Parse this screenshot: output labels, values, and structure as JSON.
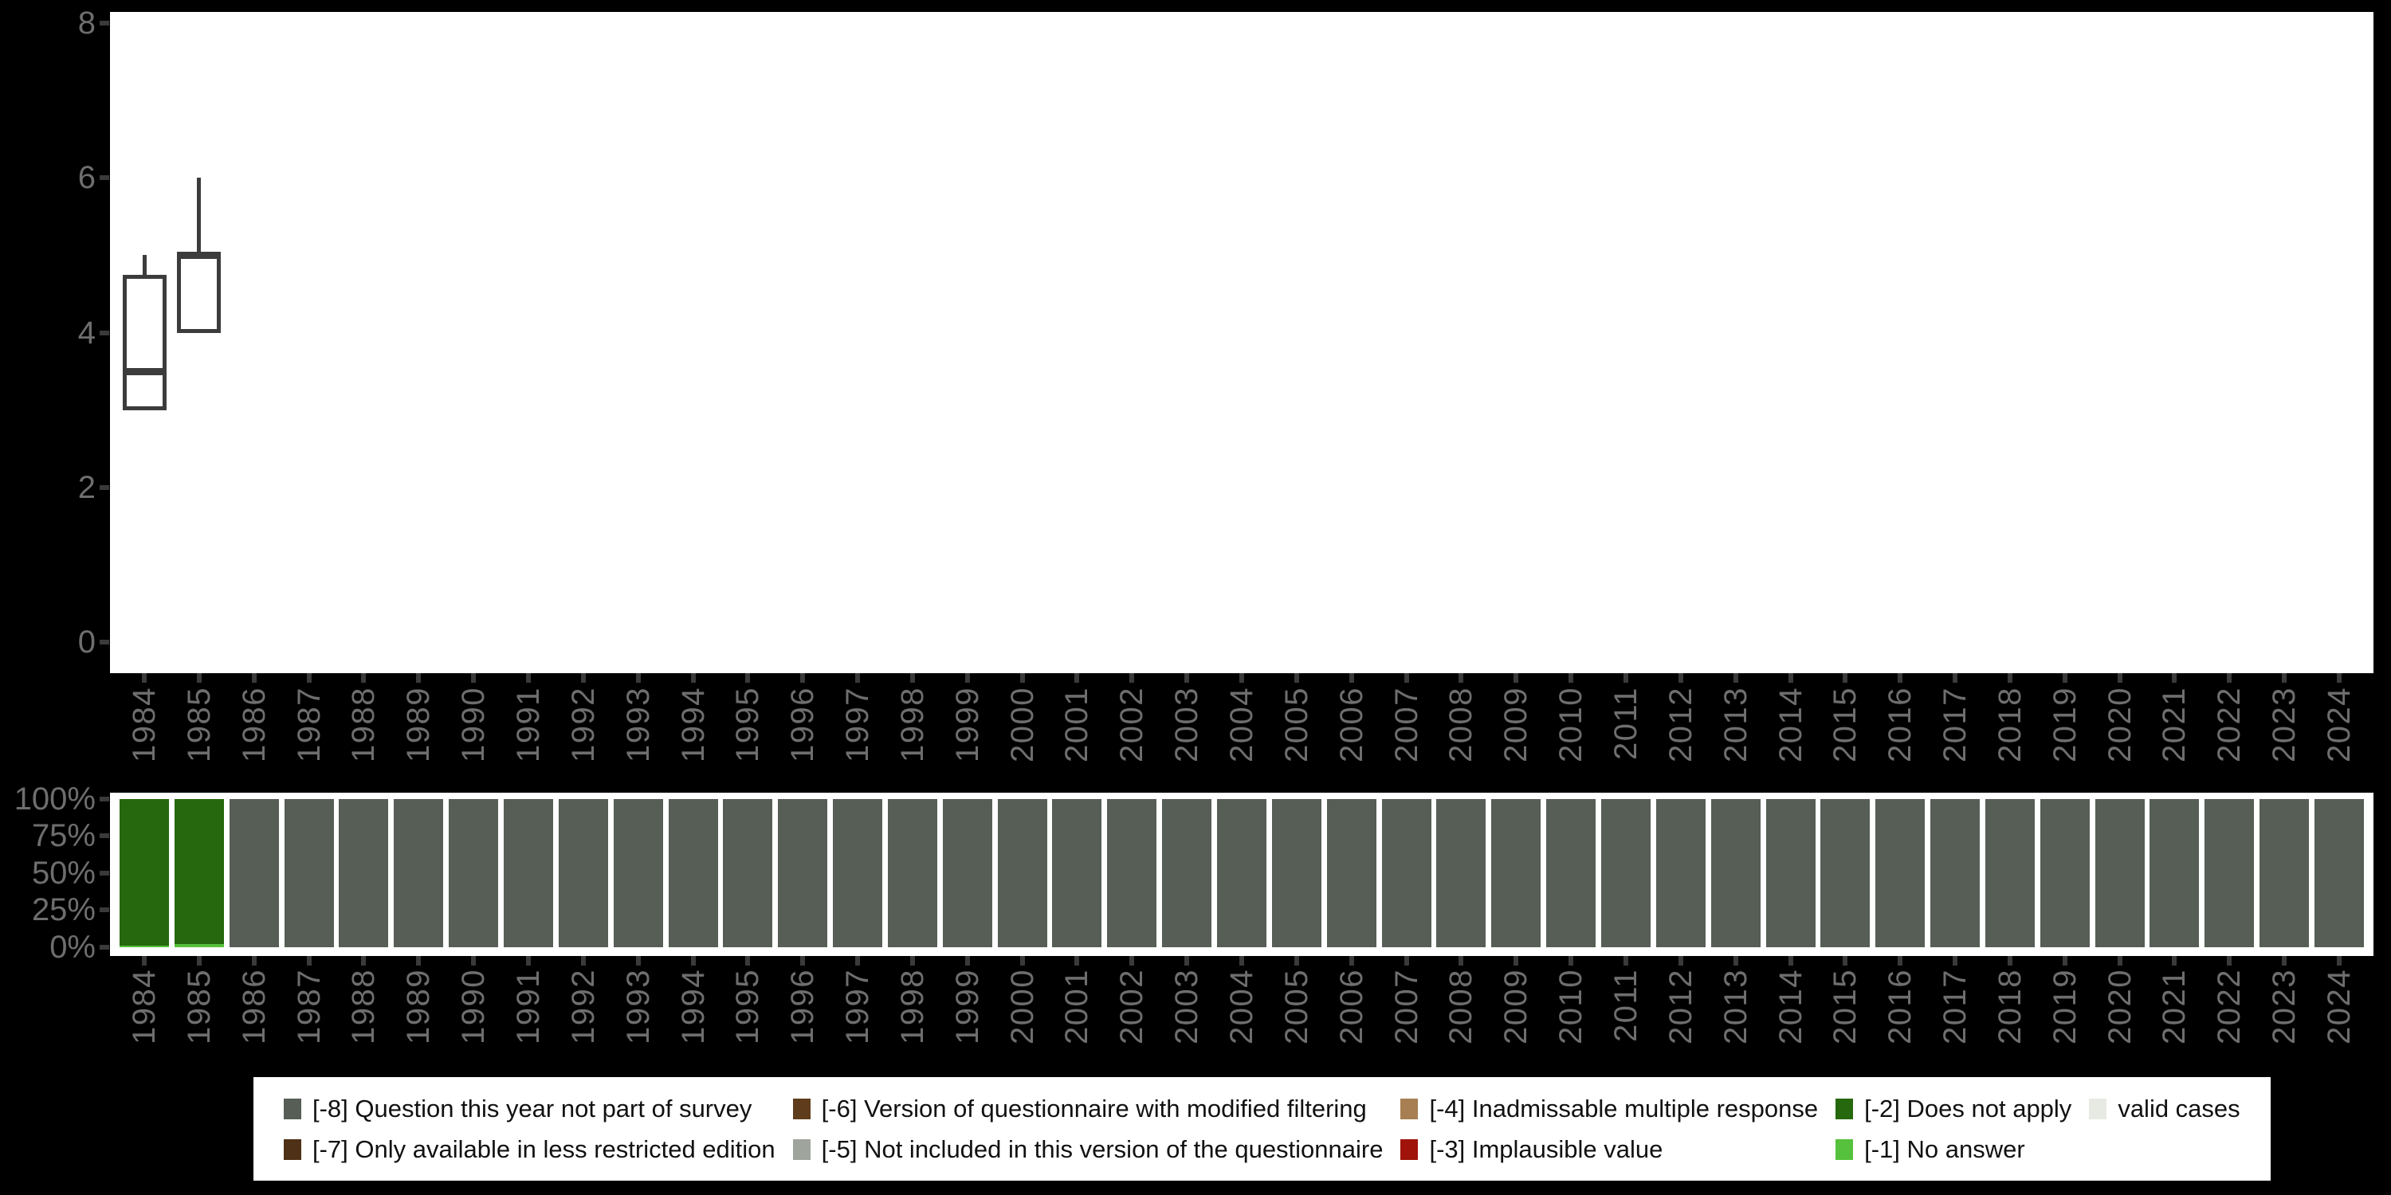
{
  "colors": {
    "page_background": "#000000",
    "plot_background": "#ffffff",
    "axis_text": "#6e6e6e",
    "tick_mark": "#3a3a3a",
    "boxplot_stroke": "#3c3c3c"
  },
  "chart_data": [
    {
      "type": "boxplot",
      "title": "",
      "xlabel": "",
      "ylabel": "",
      "ylim": [
        0,
        8
      ],
      "yticks": [
        0,
        2,
        4,
        6,
        8
      ],
      "grid": false,
      "x_categories": [
        "1984",
        "1985",
        "1986",
        "1987",
        "1988",
        "1989",
        "1990",
        "1991",
        "1992",
        "1993",
        "1994",
        "1995",
        "1996",
        "1997",
        "1998",
        "1999",
        "2000",
        "2001",
        "2002",
        "2003",
        "2004",
        "2005",
        "2006",
        "2007",
        "2008",
        "2009",
        "2010",
        "2011",
        "2012",
        "2013",
        "2014",
        "2015",
        "2016",
        "2017",
        "2018",
        "2019",
        "2020",
        "2021",
        "2022",
        "2023",
        "2024"
      ],
      "boxes": [
        {
          "x": "1984",
          "whisker_low": 3.0,
          "q1": 3.0,
          "median": 3.5,
          "q3": 4.75,
          "whisker_high": 5.0
        },
        {
          "x": "1985",
          "whisker_low": 4.0,
          "q1": 4.0,
          "median": 5.0,
          "q3": 5.0,
          "whisker_high": 6.0
        }
      ]
    },
    {
      "type": "bar",
      "stacked": true,
      "title": "",
      "xlabel": "",
      "ylabel": "",
      "ylim": [
        0,
        100
      ],
      "ytick_labels": [
        "0%",
        "25%",
        "50%",
        "75%",
        "100%"
      ],
      "ytick_values": [
        0,
        25,
        50,
        75,
        100
      ],
      "grid": false,
      "x_categories": [
        "1984",
        "1985",
        "1986",
        "1987",
        "1988",
        "1989",
        "1990",
        "1991",
        "1992",
        "1993",
        "1994",
        "1995",
        "1996",
        "1997",
        "1998",
        "1999",
        "2000",
        "2001",
        "2002",
        "2003",
        "2004",
        "2005",
        "2006",
        "2007",
        "2008",
        "2009",
        "2010",
        "2011",
        "2012",
        "2013",
        "2014",
        "2015",
        "2016",
        "2017",
        "2018",
        "2019",
        "2020",
        "2021",
        "2022",
        "2023",
        "2024"
      ],
      "series": [
        {
          "name": "[-1] No answer",
          "code": "-1",
          "color": "#56c13c",
          "values": [
            1,
            2,
            0,
            0,
            0,
            0,
            0,
            0,
            0,
            0,
            0,
            0,
            0,
            0,
            0,
            0,
            0,
            0,
            0,
            0,
            0,
            0,
            0,
            0,
            0,
            0,
            0,
            0,
            0,
            0,
            0,
            0,
            0,
            0,
            0,
            0,
            0,
            0,
            0,
            0,
            0
          ]
        },
        {
          "name": "[-2] Does not apply",
          "code": "-2",
          "color": "#26680d",
          "values": [
            99,
            98,
            0,
            0,
            0,
            0,
            0,
            0,
            0,
            0,
            0,
            0,
            0,
            0,
            0,
            0,
            0,
            0,
            0,
            0,
            0,
            0,
            0,
            0,
            0,
            0,
            0,
            0,
            0,
            0,
            0,
            0,
            0,
            0,
            0,
            0,
            0,
            0,
            0,
            0,
            0
          ]
        },
        {
          "name": "[-8] Question this year not part of survey",
          "code": "-8",
          "color": "#565e56",
          "values": [
            0,
            0,
            100,
            100,
            100,
            100,
            100,
            100,
            100,
            100,
            100,
            100,
            100,
            100,
            100,
            100,
            100,
            100,
            100,
            100,
            100,
            100,
            100,
            100,
            100,
            100,
            100,
            100,
            100,
            100,
            100,
            100,
            100,
            100,
            100,
            100,
            100,
            100,
            100,
            100,
            100
          ]
        }
      ]
    }
  ],
  "legend": {
    "items": [
      {
        "code": "-8",
        "label": "[-8] Question this year not part of survey",
        "color": "#565e56"
      },
      {
        "code": "-7",
        "label": "[-7] Only available in less restricted edition",
        "color": "#4e3117"
      },
      {
        "code": "-6",
        "label": "[-6] Version of questionnaire with modified filtering",
        "color": "#5e3c1c"
      },
      {
        "code": "-5",
        "label": "[-5] Not included in this version of the questionnaire",
        "color": "#9fa49d"
      },
      {
        "code": "-4",
        "label": "[-4] Inadmissable multiple response",
        "color": "#a87f52"
      },
      {
        "code": "-3",
        "label": "[-3] Implausible value",
        "color": "#9f130b"
      },
      {
        "code": "-2",
        "label": "[-2] Does not apply",
        "color": "#26680d"
      },
      {
        "code": "-1",
        "label": "[-1] No answer",
        "color": "#56c13c"
      },
      {
        "code": "valid",
        "label": "valid cases",
        "color": "#e7e9e3"
      }
    ]
  }
}
